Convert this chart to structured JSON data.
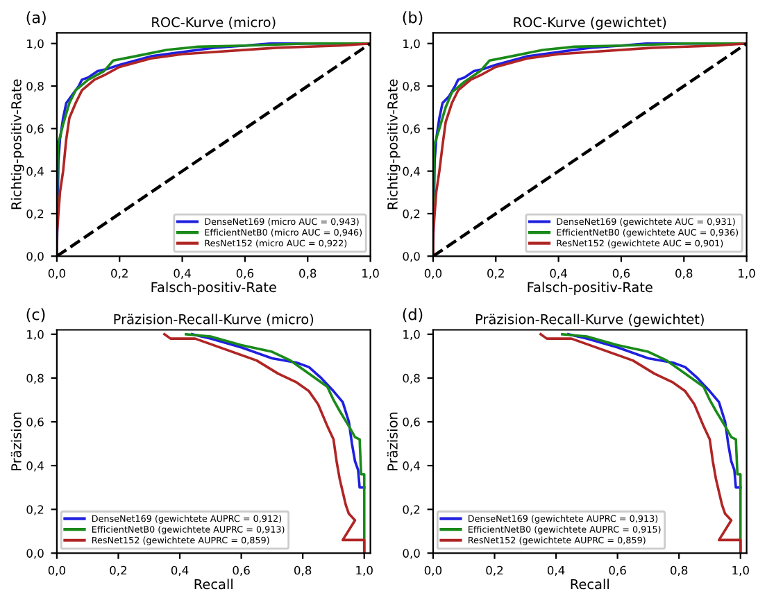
{
  "chart_data": [
    {
      "type": "line",
      "title": "ROC-Kurve (micro)",
      "xlabel": "Falsch-positiv-Rate",
      "ylabel": "Richtig-positiv-Rate",
      "annotations": [
        "(a)"
      ],
      "xlim": [
        0,
        1
      ],
      "ylim": [
        0,
        1.05
      ],
      "xticks": [
        {
          "value": 0,
          "label": "0,0"
        },
        {
          "value": 0.2,
          "label": "0,2"
        },
        {
          "value": 0.4,
          "label": "0,4"
        },
        {
          "value": 0.6,
          "label": "0,6"
        },
        {
          "value": 0.8,
          "label": "0,8"
        },
        {
          "value": 1,
          "label": "1,0"
        }
      ],
      "yticks": [
        {
          "value": 0,
          "label": "0,0"
        },
        {
          "value": 0.2,
          "label": "0,2"
        },
        {
          "value": 0.4,
          "label": "0,4"
        },
        {
          "value": 0.6,
          "label": "0,6"
        },
        {
          "value": 0.8,
          "label": "0,8"
        },
        {
          "value": 1,
          "label": "1,0"
        }
      ],
      "legend": "bottom right",
      "grid": false,
      "series": [
        {
          "name": "DenseNet169 (micro AUC = 0,943)",
          "color": "#1f1fe0",
          "x": [
            0,
            0.005,
            0.01,
            0.02,
            0.03,
            0.05,
            0.07,
            0.08,
            0.1,
            0.13,
            0.16,
            0.2,
            0.3,
            0.4,
            0.5,
            0.6,
            0.68,
            1
          ],
          "values": [
            0,
            0.45,
            0.55,
            0.65,
            0.72,
            0.76,
            0.8,
            0.83,
            0.84,
            0.87,
            0.88,
            0.9,
            0.94,
            0.96,
            0.98,
            0.99,
            1,
            1
          ]
        },
        {
          "name": "EfficientNetB0 (micro AUC = 0,946)",
          "color": "#1a8a1a",
          "x": [
            0,
            0,
            0.003,
            0.02,
            0.04,
            0.06,
            0.1,
            0.15,
            0.18,
            0.25,
            0.35,
            0.45,
            0.6,
            0.8,
            1
          ],
          "values": [
            0,
            0.2,
            0.52,
            0.62,
            0.72,
            0.78,
            0.83,
            0.87,
            0.92,
            0.94,
            0.97,
            0.985,
            0.99,
            1,
            1
          ]
        },
        {
          "name": "ResNet152 (micro AUC = 0,922)",
          "color": "#b02525",
          "x": [
            0,
            0,
            0.01,
            0.02,
            0.03,
            0.04,
            0.06,
            0.08,
            0.12,
            0.15,
            0.2,
            0.3,
            0.4,
            0.5,
            0.7,
            0.9,
            1
          ],
          "values": [
            0,
            0.1,
            0.3,
            0.4,
            0.55,
            0.65,
            0.72,
            0.78,
            0.83,
            0.85,
            0.89,
            0.93,
            0.95,
            0.96,
            0.98,
            0.99,
            1
          ]
        },
        {
          "color": "#000000",
          "line_style": "dashed",
          "x": [
            0,
            1
          ],
          "values": [
            0,
            1
          ]
        }
      ]
    },
    {
      "type": "line",
      "title": "ROC-Kurve (gewichtet)",
      "xlabel": "Falsch-positiv-Rate",
      "ylabel": "Richtig-positiv-Rate",
      "annotations": [
        "(b)"
      ],
      "xlim": [
        0,
        1
      ],
      "ylim": [
        0,
        1.05
      ],
      "xticks": [
        {
          "value": 0,
          "label": "0,0"
        },
        {
          "value": 0.2,
          "label": "0,2"
        },
        {
          "value": 0.4,
          "label": "0,4"
        },
        {
          "value": 0.6,
          "label": "0,6"
        },
        {
          "value": 0.8,
          "label": "0,8"
        },
        {
          "value": 1,
          "label": "1,0"
        }
      ],
      "yticks": [
        {
          "value": 0,
          "label": "0,0"
        },
        {
          "value": 0.2,
          "label": "0,2"
        },
        {
          "value": 0.4,
          "label": "0,4"
        },
        {
          "value": 0.6,
          "label": "0,6"
        },
        {
          "value": 0.8,
          "label": "0,8"
        },
        {
          "value": 1,
          "label": "1,0"
        }
      ],
      "legend": "bottom right",
      "grid": false,
      "series": [
        {
          "name": "DenseNet169 (gewichtete AUC = 0,931)",
          "color": "#1f1fe0",
          "x": [
            0,
            0.005,
            0.01,
            0.02,
            0.03,
            0.05,
            0.07,
            0.08,
            0.1,
            0.13,
            0.16,
            0.2,
            0.3,
            0.4,
            0.5,
            0.6,
            0.68,
            1
          ],
          "values": [
            0,
            0.45,
            0.55,
            0.65,
            0.72,
            0.75,
            0.8,
            0.83,
            0.84,
            0.87,
            0.88,
            0.9,
            0.94,
            0.96,
            0.98,
            0.99,
            1,
            1
          ]
        },
        {
          "name": "EfficientNetB0 (gewichtete AUC = 0,936)",
          "color": "#1a8a1a",
          "x": [
            0,
            0,
            0.003,
            0.02,
            0.04,
            0.06,
            0.1,
            0.15,
            0.18,
            0.25,
            0.35,
            0.45,
            0.6,
            0.8,
            1
          ],
          "values": [
            0,
            0.2,
            0.52,
            0.6,
            0.7,
            0.77,
            0.82,
            0.87,
            0.92,
            0.94,
            0.97,
            0.985,
            0.99,
            1,
            1
          ]
        },
        {
          "name": "ResNet152 (gewichtete AUC = 0,901)",
          "color": "#b02525",
          "x": [
            0,
            0,
            0.01,
            0.02,
            0.03,
            0.04,
            0.06,
            0.08,
            0.12,
            0.15,
            0.2,
            0.3,
            0.4,
            0.5,
            0.7,
            0.9,
            1
          ],
          "values": [
            0,
            0.1,
            0.3,
            0.4,
            0.52,
            0.63,
            0.72,
            0.78,
            0.83,
            0.85,
            0.89,
            0.93,
            0.95,
            0.96,
            0.98,
            0.99,
            1
          ]
        },
        {
          "color": "#000000",
          "line_style": "dashed",
          "x": [
            0,
            1
          ],
          "values": [
            0,
            1
          ]
        }
      ]
    },
    {
      "type": "line",
      "title": "Präzision-Recall-Kurve (micro)",
      "xlabel": "Recall",
      "ylabel": "Präzision",
      "annotations": [
        "(c)"
      ],
      "xlim": [
        0,
        1.02
      ],
      "ylim": [
        0,
        1.02
      ],
      "xticks": [
        {
          "value": 0,
          "label": "0,0"
        },
        {
          "value": 0.2,
          "label": "0,2"
        },
        {
          "value": 0.4,
          "label": "0,4"
        },
        {
          "value": 0.6,
          "label": "0,6"
        },
        {
          "value": 0.8,
          "label": "0,8"
        },
        {
          "value": 1,
          "label": "1,0"
        }
      ],
      "yticks": [
        {
          "value": 0,
          "label": "0,0"
        },
        {
          "value": 0.2,
          "label": "0,2"
        },
        {
          "value": 0.4,
          "label": "0,4"
        },
        {
          "value": 0.6,
          "label": "0,6"
        },
        {
          "value": 0.8,
          "label": "0,8"
        },
        {
          "value": 1,
          "label": "1,0"
        }
      ],
      "legend": "bottom left",
      "grid": false,
      "series": [
        {
          "name": "DenseNet169 (gewichtete AUPRC = 0,912)",
          "color": "#1f1fe0",
          "x": [
            0.44,
            0.5,
            0.6,
            0.7,
            0.78,
            0.82,
            0.86,
            0.9,
            0.93,
            0.95,
            0.96,
            0.97,
            0.98,
            0.985,
            1.0
          ],
          "values": [
            1.0,
            0.98,
            0.94,
            0.89,
            0.87,
            0.85,
            0.8,
            0.74,
            0.69,
            0.6,
            0.5,
            0.42,
            0.38,
            0.3,
            0.3
          ]
        },
        {
          "name": "EfficientNetB0 (gewichtete AUPRC = 0,913)",
          "color": "#1a8a1a",
          "x": [
            0.42,
            0.5,
            0.6,
            0.7,
            0.76,
            0.8,
            0.85,
            0.88,
            0.9,
            0.92,
            0.95,
            0.97,
            0.985,
            0.99,
            1.0,
            1.0
          ],
          "values": [
            1.0,
            0.99,
            0.95,
            0.92,
            0.88,
            0.84,
            0.79,
            0.76,
            0.7,
            0.65,
            0.58,
            0.53,
            0.52,
            0.36,
            0.36,
            0.0
          ]
        },
        {
          "name": "ResNet152 (gewichtete AUPRC = 0,859)",
          "color": "#b02525",
          "x": [
            0.35,
            0.37,
            0.45,
            0.55,
            0.65,
            0.72,
            0.78,
            0.82,
            0.85,
            0.88,
            0.9,
            0.91,
            0.92,
            0.93,
            0.94,
            0.95,
            0.97,
            0.93,
            1.0,
            1.0
          ],
          "values": [
            1.0,
            0.98,
            0.98,
            0.93,
            0.88,
            0.82,
            0.78,
            0.74,
            0.68,
            0.58,
            0.52,
            0.42,
            0.34,
            0.28,
            0.22,
            0.18,
            0.15,
            0.06,
            0.06,
            0.0
          ]
        }
      ]
    },
    {
      "type": "line",
      "title": "Präzision-Recall-Kurve (gewichtet)",
      "xlabel": "Recall",
      "ylabel": "Präzision",
      "annotations": [
        "(d)"
      ],
      "xlim": [
        0,
        1.02
      ],
      "ylim": [
        0,
        1.02
      ],
      "xticks": [
        {
          "value": 0,
          "label": "0,0"
        },
        {
          "value": 0.2,
          "label": "0,2"
        },
        {
          "value": 0.4,
          "label": "0,4"
        },
        {
          "value": 0.6,
          "label": "0,6"
        },
        {
          "value": 0.8,
          "label": "0,8"
        },
        {
          "value": 1,
          "label": "1,0"
        }
      ],
      "yticks": [
        {
          "value": 0,
          "label": "0,0"
        },
        {
          "value": 0.2,
          "label": "0,2"
        },
        {
          "value": 0.4,
          "label": "0,4"
        },
        {
          "value": 0.6,
          "label": "0,6"
        },
        {
          "value": 0.8,
          "label": "0,8"
        },
        {
          "value": 1,
          "label": "1,0"
        }
      ],
      "legend": "bottom left",
      "grid": false,
      "series": [
        {
          "name": "DenseNet169 (gewichtete AUPRC = 0,913)",
          "color": "#1f1fe0",
          "x": [
            0.44,
            0.5,
            0.6,
            0.7,
            0.78,
            0.82,
            0.86,
            0.9,
            0.93,
            0.95,
            0.96,
            0.97,
            0.98,
            0.985,
            1.0
          ],
          "values": [
            1.0,
            0.98,
            0.94,
            0.89,
            0.87,
            0.85,
            0.8,
            0.74,
            0.69,
            0.6,
            0.5,
            0.42,
            0.38,
            0.3,
            0.3
          ]
        },
        {
          "name": "EfficientNetB0 (gewichtete AUPRC = 0,915)",
          "color": "#1a8a1a",
          "x": [
            0.42,
            0.5,
            0.6,
            0.7,
            0.76,
            0.8,
            0.85,
            0.88,
            0.9,
            0.92,
            0.95,
            0.97,
            0.985,
            0.99,
            1.0,
            1.0
          ],
          "values": [
            1.0,
            0.99,
            0.95,
            0.92,
            0.88,
            0.84,
            0.79,
            0.76,
            0.7,
            0.65,
            0.58,
            0.53,
            0.52,
            0.36,
            0.36,
            0.0
          ]
        },
        {
          "name": "ResNet152 (gewichtete AUPRC = 0,859)",
          "color": "#b02525",
          "x": [
            0.35,
            0.37,
            0.45,
            0.55,
            0.65,
            0.72,
            0.78,
            0.82,
            0.85,
            0.88,
            0.9,
            0.91,
            0.92,
            0.93,
            0.94,
            0.95,
            0.97,
            0.93,
            1.0,
            1.0
          ],
          "values": [
            1.0,
            0.98,
            0.98,
            0.93,
            0.88,
            0.82,
            0.78,
            0.74,
            0.68,
            0.58,
            0.52,
            0.42,
            0.34,
            0.28,
            0.22,
            0.18,
            0.15,
            0.06,
            0.06,
            0.0
          ]
        }
      ]
    }
  ]
}
